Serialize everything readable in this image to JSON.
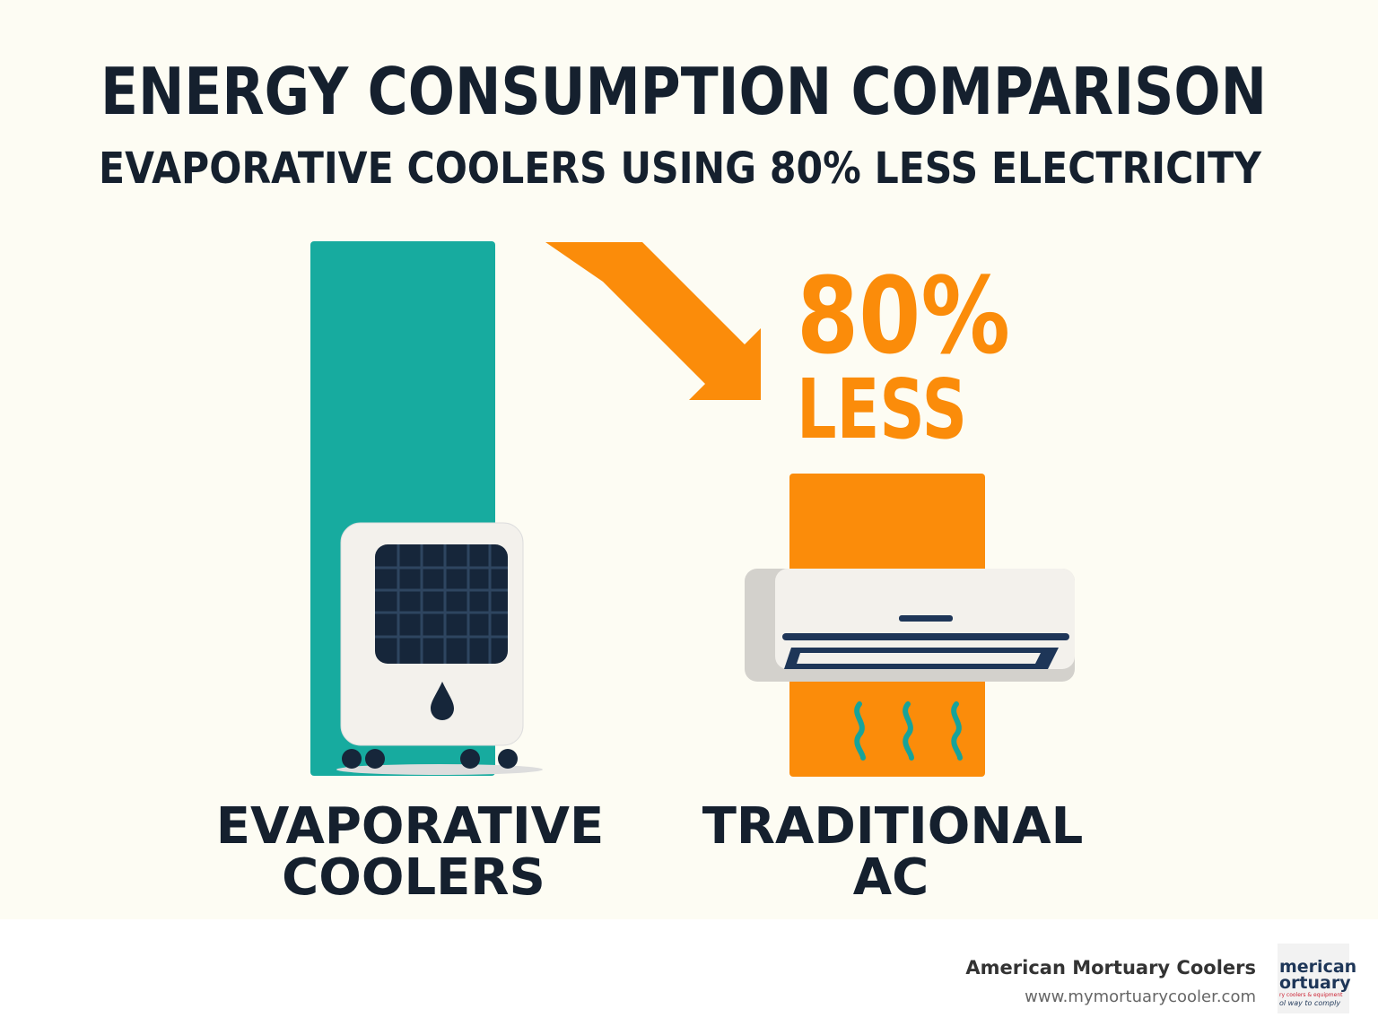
{
  "header": {
    "title": "ENERGY CONSUMPTION COMPARISON",
    "subtitle": "EVAPORATIVE COOLERS USING 80% LESS ELECTRICITY"
  },
  "callout": {
    "value": "80%",
    "text": "LESS"
  },
  "items": [
    {
      "label_lines": [
        "EVAPORATIVE",
        "COOLERS"
      ]
    },
    {
      "label_lines": [
        "TRADITIONAL",
        "AC"
      ]
    }
  ],
  "footer": {
    "company": "American Mortuary Coolers",
    "url": "www.mymortuarycooler.com",
    "logo_lines": [
      "merican",
      "ortuary",
      "ry coolers & equipment",
      "ol way to comply"
    ]
  }
}
